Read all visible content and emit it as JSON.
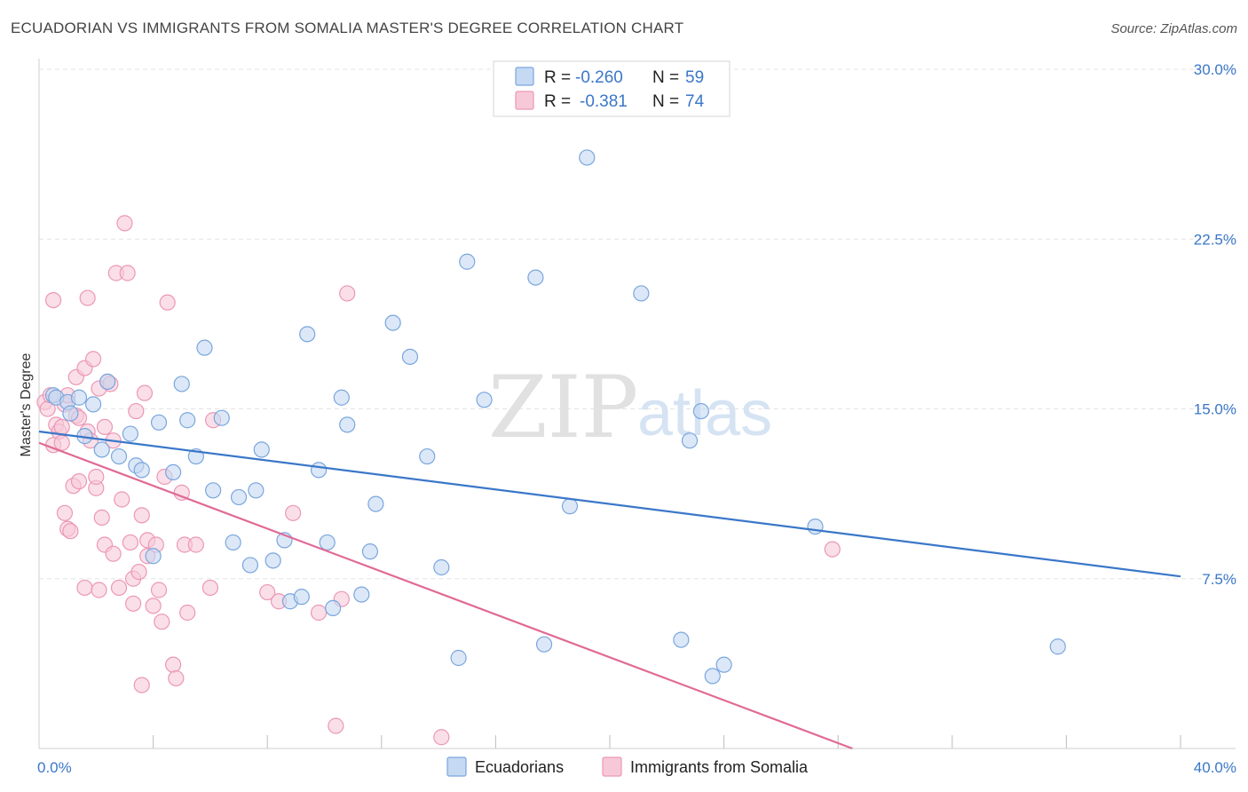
{
  "title": "ECUADORIAN VS IMMIGRANTS FROM SOMALIA MASTER'S DEGREE CORRELATION CHART",
  "source": "Source: ZipAtlas.com",
  "watermark": {
    "zip": "ZIP",
    "atlas": "atlas"
  },
  "colors": {
    "blue": "#3a77c9",
    "blue_fill": "#c5d9f2",
    "blue_stroke": "#7aa6de",
    "pink": "#e06a95",
    "pink_fill": "#f7c9d8",
    "pink_stroke": "#ec97b5",
    "grid": "#e3e3e3"
  },
  "legend": {
    "r_label": "R =",
    "n_label": "N =",
    "rows": [
      {
        "series": "Ecuadorians",
        "r": "-0.260",
        "n": "59"
      },
      {
        "series": "Immigrants from Somalia",
        "r": "-0.381",
        "n": "74"
      }
    ]
  },
  "chart_data": {
    "type": "scatter",
    "title": "ECUADORIAN VS IMMIGRANTS FROM SOMALIA MASTER'S DEGREE CORRELATION CHART",
    "xlabel": "",
    "ylabel": "Master's Degree",
    "xlim": [
      0,
      40
    ],
    "ylim": [
      0,
      30
    ],
    "x_ticks": [
      "0.0%",
      "40.0%"
    ],
    "y_ticks": [
      {
        "value": 7.5,
        "label": "7.5%"
      },
      {
        "value": 15,
        "label": "15.0%"
      },
      {
        "value": 22.5,
        "label": "22.5%"
      },
      {
        "value": 30,
        "label": "30.0%"
      }
    ],
    "grid": true,
    "legend_position": "top-center",
    "series": [
      {
        "name": "Ecuadorians",
        "color": "#3a77c9",
        "trend": {
          "x": [
            0,
            40
          ],
          "y": [
            14.0,
            7.6
          ]
        },
        "points": [
          [
            0.5,
            15.6
          ],
          [
            0.6,
            15.5
          ],
          [
            1.0,
            15.3
          ],
          [
            1.1,
            14.8
          ],
          [
            1.4,
            15.5
          ],
          [
            1.6,
            13.8
          ],
          [
            1.9,
            15.2
          ],
          [
            2.2,
            13.2
          ],
          [
            2.4,
            16.2
          ],
          [
            2.8,
            12.9
          ],
          [
            3.2,
            13.9
          ],
          [
            3.4,
            12.5
          ],
          [
            3.6,
            12.3
          ],
          [
            4.0,
            8.5
          ],
          [
            4.2,
            14.4
          ],
          [
            4.7,
            12.2
          ],
          [
            5.0,
            16.1
          ],
          [
            5.2,
            14.5
          ],
          [
            5.5,
            12.9
          ],
          [
            5.8,
            17.7
          ],
          [
            6.1,
            11.4
          ],
          [
            6.4,
            14.6
          ],
          [
            6.8,
            9.1
          ],
          [
            7.0,
            11.1
          ],
          [
            7.4,
            8.1
          ],
          [
            7.6,
            11.4
          ],
          [
            7.8,
            13.2
          ],
          [
            8.2,
            8.3
          ],
          [
            8.6,
            9.2
          ],
          [
            8.8,
            6.5
          ],
          [
            9.2,
            6.7
          ],
          [
            9.4,
            18.3
          ],
          [
            9.8,
            12.3
          ],
          [
            10.1,
            9.1
          ],
          [
            10.3,
            6.2
          ],
          [
            10.6,
            15.5
          ],
          [
            10.8,
            14.3
          ],
          [
            11.3,
            6.8
          ],
          [
            11.6,
            8.7
          ],
          [
            11.8,
            10.8
          ],
          [
            12.4,
            18.8
          ],
          [
            13.0,
            17.3
          ],
          [
            13.6,
            12.9
          ],
          [
            14.1,
            8.0
          ],
          [
            14.7,
            4.0
          ],
          [
            15.0,
            21.5
          ],
          [
            15.6,
            15.4
          ],
          [
            17.4,
            20.8
          ],
          [
            17.7,
            4.6
          ],
          [
            18.6,
            10.7
          ],
          [
            19.2,
            26.1
          ],
          [
            21.1,
            20.1
          ],
          [
            22.5,
            4.8
          ],
          [
            22.8,
            13.6
          ],
          [
            23.2,
            14.9
          ],
          [
            23.6,
            3.2
          ],
          [
            24.0,
            3.7
          ],
          [
            27.2,
            9.8
          ],
          [
            35.7,
            4.5
          ]
        ]
      },
      {
        "name": "Immigrants from Somalia",
        "color": "#e06a95",
        "trend": {
          "x": [
            0,
            28.5
          ],
          "y": [
            13.5,
            0
          ]
        },
        "points": [
          [
            0.2,
            15.3
          ],
          [
            0.3,
            15.0
          ],
          [
            0.4,
            15.6
          ],
          [
            0.5,
            13.4
          ],
          [
            0.5,
            19.8
          ],
          [
            0.6,
            14.3
          ],
          [
            0.7,
            14.0
          ],
          [
            0.8,
            14.2
          ],
          [
            0.8,
            13.5
          ],
          [
            0.9,
            15.2
          ],
          [
            0.9,
            10.4
          ],
          [
            1.0,
            9.7
          ],
          [
            1.0,
            15.6
          ],
          [
            1.1,
            9.6
          ],
          [
            1.2,
            11.6
          ],
          [
            1.3,
            16.4
          ],
          [
            1.3,
            14.7
          ],
          [
            1.4,
            11.8
          ],
          [
            1.4,
            14.6
          ],
          [
            1.6,
            16.8
          ],
          [
            1.6,
            7.1
          ],
          [
            1.7,
            14.0
          ],
          [
            1.7,
            19.9
          ],
          [
            1.8,
            13.6
          ],
          [
            1.9,
            17.2
          ],
          [
            2.0,
            11.5
          ],
          [
            2.0,
            12.0
          ],
          [
            2.1,
            15.9
          ],
          [
            2.1,
            7.0
          ],
          [
            2.2,
            10.2
          ],
          [
            2.3,
            14.2
          ],
          [
            2.3,
            9.0
          ],
          [
            2.4,
            16.2
          ],
          [
            2.5,
            16.1
          ],
          [
            2.6,
            13.6
          ],
          [
            2.6,
            8.6
          ],
          [
            2.7,
            21.0
          ],
          [
            2.8,
            7.1
          ],
          [
            2.9,
            11.0
          ],
          [
            3.0,
            23.2
          ],
          [
            3.1,
            21.0
          ],
          [
            3.2,
            9.1
          ],
          [
            3.3,
            6.4
          ],
          [
            3.3,
            7.5
          ],
          [
            3.4,
            14.9
          ],
          [
            3.5,
            7.8
          ],
          [
            3.6,
            10.3
          ],
          [
            3.6,
            2.8
          ],
          [
            3.7,
            15.7
          ],
          [
            3.8,
            9.2
          ],
          [
            3.8,
            8.5
          ],
          [
            4.0,
            6.3
          ],
          [
            4.1,
            9.0
          ],
          [
            4.2,
            7.0
          ],
          [
            4.3,
            5.6
          ],
          [
            4.4,
            12.0
          ],
          [
            4.5,
            19.7
          ],
          [
            4.7,
            3.7
          ],
          [
            4.8,
            3.1
          ],
          [
            5.0,
            11.3
          ],
          [
            5.1,
            9.0
          ],
          [
            5.2,
            6.0
          ],
          [
            5.5,
            9.0
          ],
          [
            6.0,
            7.1
          ],
          [
            6.1,
            14.5
          ],
          [
            8.0,
            6.9
          ],
          [
            8.4,
            6.5
          ],
          [
            8.9,
            10.4
          ],
          [
            9.8,
            6.0
          ],
          [
            10.4,
            1.0
          ],
          [
            10.6,
            6.6
          ],
          [
            10.8,
            20.1
          ],
          [
            14.1,
            0.5
          ],
          [
            27.8,
            8.8
          ]
        ]
      }
    ]
  }
}
